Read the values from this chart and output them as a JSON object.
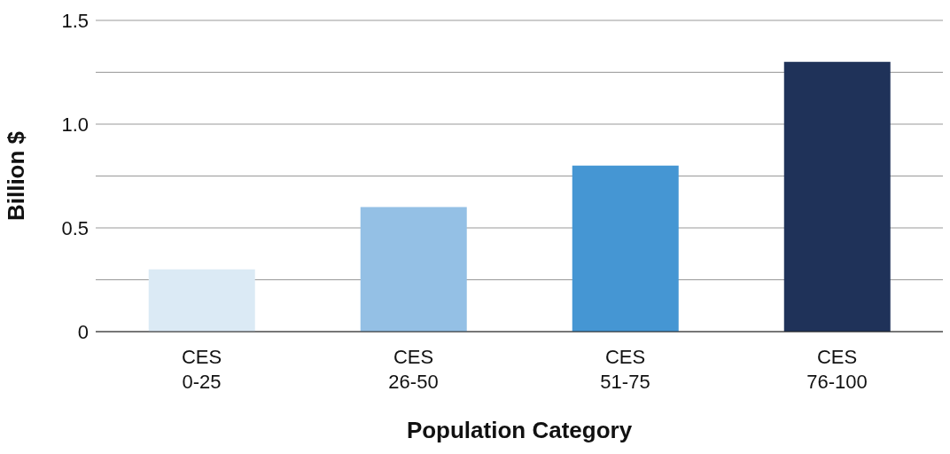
{
  "chart_data": {
    "type": "bar",
    "xlabel": "Population Category",
    "ylabel": "Billion $",
    "categories": [
      "CES 0-25",
      "CES 26-50",
      "CES 51-75",
      "CES 76-100"
    ],
    "values": [
      0.3,
      0.6,
      0.8,
      1.3
    ],
    "colors": [
      "#dbeaf5",
      "#94c0e5",
      "#4596d3",
      "#1f3259"
    ],
    "ylim": [
      0,
      1.5
    ],
    "yticks": [
      0,
      {
        "value": 0.25,
        "label": null
      },
      0.5,
      {
        "value": 0.75,
        "label": null
      },
      {
        "value": 1,
        "label": "1.0"
      },
      {
        "value": 1.25,
        "label": null
      },
      1.5
    ],
    "grid": "y"
  }
}
